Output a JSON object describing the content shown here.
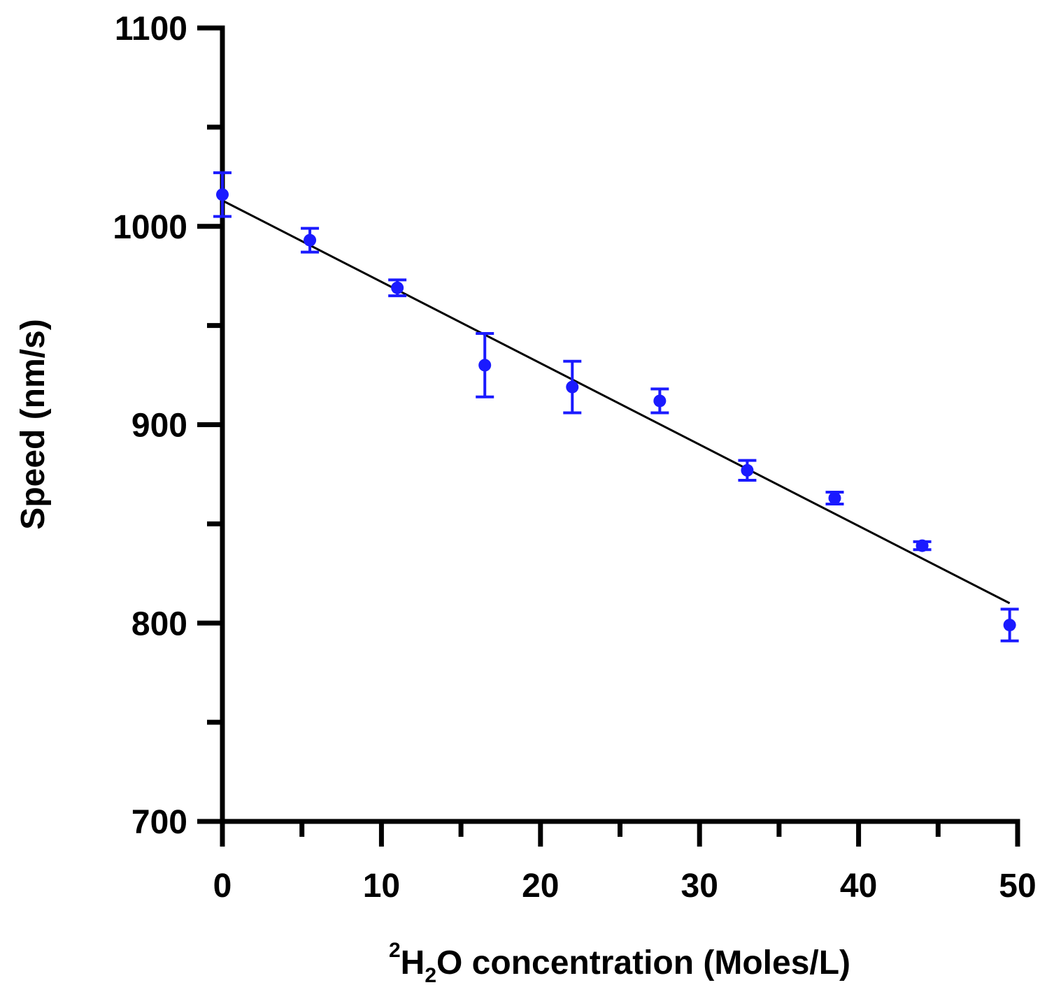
{
  "chart_data": {
    "type": "scatter",
    "xlabel_parts": {
      "superscript": "2",
      "base": "H",
      "subscript": "2",
      "rest": "O concentration (Moles/L)"
    },
    "ylabel": "Speed (nm/s)",
    "xlim": [
      0,
      50
    ],
    "ylim": [
      700,
      1100
    ],
    "x_ticks": [
      0,
      10,
      20,
      30,
      40,
      50
    ],
    "x_tick_labels": [
      "0",
      "10",
      "20",
      "30",
      "40",
      "50"
    ],
    "x_minor_ticks": [
      5,
      15,
      25,
      35,
      45
    ],
    "y_ticks": [
      700,
      800,
      900,
      1000,
      1100
    ],
    "y_tick_labels": [
      "700",
      "800",
      "900",
      "1000",
      "1100"
    ],
    "y_minor_ticks": [
      750,
      850,
      950,
      1050
    ],
    "grid": false,
    "series": [
      {
        "marker_color": "#1a1aff",
        "points": [
          {
            "x": 0.0,
            "y": 1016,
            "err": 11
          },
          {
            "x": 5.5,
            "y": 993,
            "err": 6
          },
          {
            "x": 11.0,
            "y": 969,
            "err": 4
          },
          {
            "x": 16.5,
            "y": 930,
            "err": 16
          },
          {
            "x": 22.0,
            "y": 919,
            "err": 13
          },
          {
            "x": 27.5,
            "y": 912,
            "err": 6
          },
          {
            "x": 33.0,
            "y": 877,
            "err": 5
          },
          {
            "x": 38.5,
            "y": 863,
            "err": 3
          },
          {
            "x": 44.0,
            "y": 839,
            "err": 2
          },
          {
            "x": 49.5,
            "y": 799,
            "err": 8
          }
        ]
      }
    ],
    "fit_line": {
      "color": "#000000",
      "x": [
        0,
        49.5
      ],
      "y": [
        1013,
        810
      ]
    }
  }
}
